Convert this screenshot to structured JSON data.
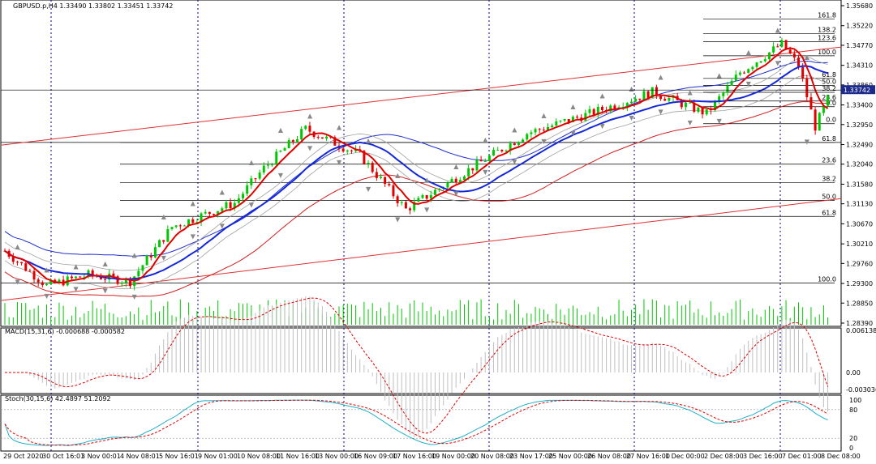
{
  "header": {
    "symbol_line": "GBPUSD.p,H4  1.33490 1.33802 1.33451 1.33742"
  },
  "colors": {
    "grid_v": "#00008b",
    "bull": "#00c800",
    "bear": "#e00000",
    "ma_fast": "#e00000",
    "ma_mid": "#1428d8",
    "band_upper": "#2030d0",
    "band_lower": "#d02020",
    "band_inner": "#a0a0a0",
    "trend_red": "#e03030",
    "fib_line": "#000000",
    "macd_hist": "#c0c0c0",
    "macd_signal": "#e00000",
    "stoch_main": "#20b0c8",
    "stoch_signal": "#e00000",
    "current_price_bg": "#1c2a8c"
  },
  "chart_data": [
    {
      "type": "candlestick",
      "name": "GBPUSD.p,H4",
      "ohlc_header": {
        "open": 1.3349,
        "high": 1.33802,
        "low": 1.33451,
        "close": 1.33742
      },
      "current_price": "1.33742",
      "price_axis_ticks": [
        "1.35680",
        "1.35220",
        "1.34770",
        "1.34310",
        "1.33860",
        "1.33400",
        "1.32950",
        "1.32490",
        "1.32040",
        "1.31580",
        "1.31130",
        "1.30670",
        "1.30210",
        "1.29760",
        "1.29300",
        "1.28850",
        "1.28390"
      ],
      "ylim": [
        1.2839,
        1.3568
      ],
      "time_axis_labels": [
        "29 Oct 2020",
        "30 Oct 16:01",
        "3 Nov 00:01",
        "4 Nov 08:01",
        "5 Nov 16:01",
        "9 Nov 01:00",
        "10 Nov 08:00",
        "11 Nov 16:00",
        "13 Nov 00:00",
        "16 Nov 09:00",
        "17 Nov 16:00",
        "19 Nov 00:00",
        "20 Nov 08:00",
        "23 Nov 17:00",
        "25 Nov 00:00",
        "26 Nov 08:00",
        "27 Nov 16:00",
        "1 Dec 00:00",
        "2 Dec 08:00",
        "3 Dec 16:00",
        "7 Dec 01:00",
        "8 Dec 08:00"
      ],
      "fibonacci_levels_left": [
        {
          "label": "161.8",
          "price": 1.3537
        },
        {
          "label": "138.2",
          "price": 1.3504
        },
        {
          "label": "123.6",
          "price": 1.3485
        },
        {
          "label": "100.0",
          "price": 1.3453
        },
        {
          "label": "61.8",
          "price": 1.3401
        },
        {
          "label": "50.0",
          "price": 1.3385
        },
        {
          "label": "38.2",
          "price": 1.3369
        },
        {
          "label": "23.6",
          "price": 1.3349
        },
        {
          "label": "0.0",
          "price": 1.3336
        },
        {
          "label": "0.0",
          "price": 1.3297
        }
      ],
      "fibonacci_levels_right": [
        {
          "label": "61.8",
          "price": 1.3254
        },
        {
          "label": "23.6",
          "price": 1.3204
        },
        {
          "label": "38.2",
          "price": 1.3162
        },
        {
          "label": "50.0",
          "price": 1.3121
        },
        {
          "label": "61.8",
          "price": 1.3084
        },
        {
          "label": "100.0",
          "price": 1.2931
        }
      ]
    },
    {
      "type": "line",
      "name": "MACD(15,31,6)",
      "header": "MACD(15,31,6) -0.000688 -0.000582",
      "axis_ticks": [
        "0.006138",
        "0.00",
        "-0.003036"
      ],
      "ylim": [
        -0.003036,
        0.006138
      ]
    },
    {
      "type": "line",
      "name": "Stoch(30,15,6)",
      "header": "Stoch(30,15,6) 42.4897 51.2092",
      "axis_ticks": [
        "100",
        "80",
        "20",
        "0"
      ],
      "ylim": [
        0,
        100
      ]
    }
  ]
}
